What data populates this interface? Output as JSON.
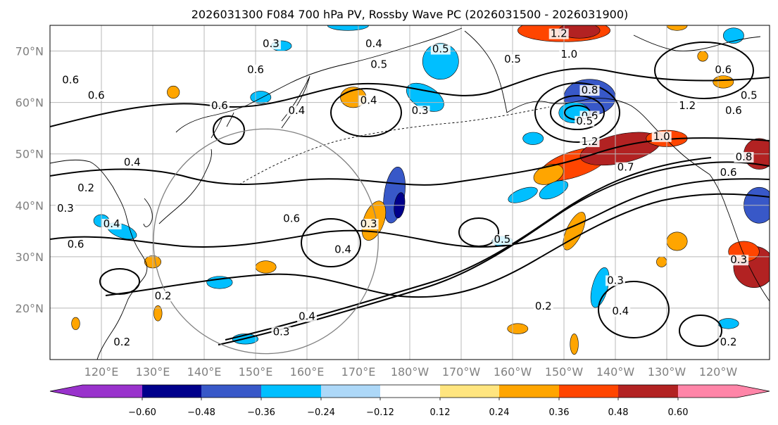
{
  "title": "2026031300 F084 700 hPa PV, Rossby Wave PC (2026031500 - 2026031900)",
  "map": {
    "lon_range": [
      110,
      250
    ],
    "lat_range": [
      10,
      75
    ],
    "lat_ticks": [
      {
        "lat": 20,
        "label": "20°N"
      },
      {
        "lat": 30,
        "label": "30°N"
      },
      {
        "lat": 40,
        "label": "40°N"
      },
      {
        "lat": 50,
        "label": "50°N"
      },
      {
        "lat": 60,
        "label": "60°N"
      },
      {
        "lat": 70,
        "label": "70°N"
      }
    ],
    "lon_ticks": [
      {
        "lon": 120,
        "label": "120°E"
      },
      {
        "lon": 130,
        "label": "130°E"
      },
      {
        "lon": 140,
        "label": "140°E"
      },
      {
        "lon": 150,
        "label": "150°E"
      },
      {
        "lon": 160,
        "label": "160°E"
      },
      {
        "lon": 170,
        "label": "170°E"
      },
      {
        "lon": 180,
        "label": "180°W"
      },
      {
        "lon": 190,
        "label": "170°W"
      },
      {
        "lon": 200,
        "label": "160°W"
      },
      {
        "lon": 210,
        "label": "150°W"
      },
      {
        "lon": 220,
        "label": "140°W"
      },
      {
        "lon": 230,
        "label": "130°W"
      },
      {
        "lon": 240,
        "label": "120°W"
      }
    ],
    "circle": {
      "lon": 152,
      "lat": 33,
      "radius_deg_lat": 23
    }
  },
  "pv_contour_labels": [
    {
      "text": "0.6",
      "lon": 114,
      "lat": 64
    },
    {
      "text": "0.6",
      "lon": 119,
      "lat": 61
    },
    {
      "text": "0.3",
      "lon": 153,
      "lat": 71
    },
    {
      "text": "0.6",
      "lon": 150,
      "lat": 66
    },
    {
      "text": "0.4",
      "lon": 173,
      "lat": 71
    },
    {
      "text": "0.5",
      "lon": 174,
      "lat": 67
    },
    {
      "text": "0.4",
      "lon": 172,
      "lat": 60
    },
    {
      "text": "0.4",
      "lon": 158,
      "lat": 58
    },
    {
      "text": "0.6",
      "lon": 143,
      "lat": 59
    },
    {
      "text": "0.5",
      "lon": 186,
      "lat": 70
    },
    {
      "text": "0.3",
      "lon": 182,
      "lat": 58
    },
    {
      "text": "0.4",
      "lon": 126,
      "lat": 48
    },
    {
      "text": "0.2",
      "lon": 117,
      "lat": 43
    },
    {
      "text": "0.3",
      "lon": 113,
      "lat": 39
    },
    {
      "text": "0.4",
      "lon": 122,
      "lat": 36
    },
    {
      "text": "0.6",
      "lon": 115,
      "lat": 32
    },
    {
      "text": "0.6",
      "lon": 157,
      "lat": 37
    },
    {
      "text": "0.3",
      "lon": 172,
      "lat": 36
    },
    {
      "text": "0.4",
      "lon": 167,
      "lat": 31
    },
    {
      "text": "0.5",
      "lon": 198,
      "lat": 33
    },
    {
      "text": "0.2",
      "lon": 132,
      "lat": 22
    },
    {
      "text": "0.3",
      "lon": 155,
      "lat": 15
    },
    {
      "text": "0.4",
      "lon": 160,
      "lat": 18
    },
    {
      "text": "0.2",
      "lon": 124,
      "lat": 13
    },
    {
      "text": "1.2",
      "lon": 209,
      "lat": 73
    },
    {
      "text": "1.0",
      "lon": 211,
      "lat": 69
    },
    {
      "text": "0.8",
      "lon": 215,
      "lat": 62
    },
    {
      "text": "0.6",
      "lon": 215,
      "lat": 57
    },
    {
      "text": "0.5",
      "lon": 214,
      "lat": 56
    },
    {
      "text": "1.2",
      "lon": 215,
      "lat": 52
    },
    {
      "text": "1.0",
      "lon": 229,
      "lat": 53
    },
    {
      "text": "1.2",
      "lon": 234,
      "lat": 59
    },
    {
      "text": "0.7",
      "lon": 222,
      "lat": 47
    },
    {
      "text": "0.5",
      "lon": 246,
      "lat": 61
    },
    {
      "text": "0.6",
      "lon": 243,
      "lat": 58
    },
    {
      "text": "0.8",
      "lon": 245,
      "lat": 49
    },
    {
      "text": "0.6",
      "lon": 242,
      "lat": 46
    },
    {
      "text": "0.6",
      "lon": 241,
      "lat": 66
    },
    {
      "text": "0.3",
      "lon": 220,
      "lat": 25
    },
    {
      "text": "0.2",
      "lon": 206,
      "lat": 20
    },
    {
      "text": "0.4",
      "lon": 221,
      "lat": 19
    },
    {
      "text": "0.2",
      "lon": 242,
      "lat": 13
    },
    {
      "text": "0.3",
      "lon": 244,
      "lat": 29
    },
    {
      "text": "0.5",
      "lon": 200,
      "lat": 68
    }
  ],
  "pc_anomalies": [
    {
      "lon": 212,
      "lat": 48,
      "rx": 7,
      "ry": 2.5,
      "rot": -18,
      "value": 0.45
    },
    {
      "lon": 221,
      "lat": 51,
      "rx": 8,
      "ry": 2.8,
      "rot": -12,
      "value": 0.52
    },
    {
      "lon": 230,
      "lat": 53,
      "rx": 4,
      "ry": 1.6,
      "rot": 0,
      "value": 0.4
    },
    {
      "lon": 207,
      "lat": 46,
      "rx": 3,
      "ry": 1.8,
      "rot": -20,
      "value": 0.28
    },
    {
      "lon": 215,
      "lat": 61,
      "rx": 5,
      "ry": 3.5,
      "rot": 0,
      "value": -0.45
    },
    {
      "lon": 212,
      "lat": 58,
      "rx": 3,
      "ry": 2.0,
      "rot": 0,
      "value": -0.3
    },
    {
      "lon": 210,
      "lat": 74,
      "rx": 9,
      "ry": 2.2,
      "rot": 0,
      "value": 0.4
    },
    {
      "lon": 213,
      "lat": 74,
      "rx": 4,
      "ry": 1.5,
      "rot": 0,
      "value": 0.55
    },
    {
      "lon": 248,
      "lat": 50,
      "rx": 3,
      "ry": 3.0,
      "rot": 0,
      "value": 0.5
    },
    {
      "lon": 248,
      "lat": 40,
      "rx": 3,
      "ry": 3.5,
      "rot": 0,
      "value": -0.4
    },
    {
      "lon": 247,
      "lat": 28,
      "rx": 4,
      "ry": 4.0,
      "rot": 0,
      "value": 0.5
    },
    {
      "lon": 245,
      "lat": 31,
      "rx": 3,
      "ry": 2.0,
      "rot": 0,
      "value": 0.38
    },
    {
      "lon": 243,
      "lat": 73,
      "rx": 2,
      "ry": 1.5,
      "rot": 0,
      "value": -0.3
    },
    {
      "lon": 241,
      "lat": 64,
      "rx": 2,
      "ry": 1.2,
      "rot": 0,
      "value": 0.28
    },
    {
      "lon": 212,
      "lat": 35,
      "rx": 1.5,
      "ry": 4.0,
      "rot": 25,
      "value": 0.35
    },
    {
      "lon": 217,
      "lat": 24,
      "rx": 1.5,
      "ry": 4.0,
      "rot": 15,
      "value": -0.3
    },
    {
      "lon": 232,
      "lat": 33,
      "rx": 2,
      "ry": 1.8,
      "rot": 0,
      "value": 0.35
    },
    {
      "lon": 202,
      "lat": 42,
      "rx": 3,
      "ry": 1.2,
      "rot": -20,
      "value": -0.28
    },
    {
      "lon": 208,
      "lat": 43,
      "rx": 3,
      "ry": 1.4,
      "rot": -25,
      "value": -0.26
    },
    {
      "lon": 198,
      "lat": 33,
      "rx": 2,
      "ry": 1.0,
      "rot": 0,
      "value": -0.25
    },
    {
      "lon": 201,
      "lat": 16,
      "rx": 2,
      "ry": 1.0,
      "rot": 0,
      "value": 0.26
    },
    {
      "lon": 212,
      "lat": 13,
      "rx": 0.8,
      "ry": 2.0,
      "rot": 0,
      "value": 0.26
    },
    {
      "lon": 242,
      "lat": 17,
      "rx": 2,
      "ry": 1.0,
      "rot": 0,
      "value": -0.3
    },
    {
      "lon": 177,
      "lat": 42,
      "rx": 2,
      "ry": 5.5,
      "rot": 8,
      "value": -0.38
    },
    {
      "lon": 178,
      "lat": 40,
      "rx": 1,
      "ry": 2.5,
      "rot": 8,
      "value": -0.5
    },
    {
      "lon": 173,
      "lat": 37,
      "rx": 2,
      "ry": 4.0,
      "rot": 20,
      "value": 0.3
    },
    {
      "lon": 183,
      "lat": 61,
      "rx": 4,
      "ry": 2.2,
      "rot": 30,
      "value": -0.35
    },
    {
      "lon": 186,
      "lat": 68,
      "rx": 3.5,
      "ry": 3.5,
      "rot": 0,
      "value": -0.33
    },
    {
      "lon": 169,
      "lat": 61,
      "rx": 2.5,
      "ry": 2.0,
      "rot": 0,
      "value": 0.3
    },
    {
      "lon": 168,
      "lat": 75,
      "rx": 4,
      "ry": 1.0,
      "rot": 0,
      "value": -0.28
    },
    {
      "lon": 124,
      "lat": 35,
      "rx": 3,
      "ry": 1.3,
      "rot": 20,
      "value": -0.3
    },
    {
      "lon": 120,
      "lat": 37,
      "rx": 1.5,
      "ry": 1.2,
      "rot": 0,
      "value": -0.28
    },
    {
      "lon": 151,
      "lat": 61,
      "rx": 2,
      "ry": 1.2,
      "rot": 0,
      "value": -0.3
    },
    {
      "lon": 134,
      "lat": 62,
      "rx": 1.2,
      "ry": 1.2,
      "rot": 0,
      "value": 0.3
    },
    {
      "lon": 130,
      "lat": 29,
      "rx": 1.6,
      "ry": 1.2,
      "rot": 0,
      "value": 0.3
    },
    {
      "lon": 152,
      "lat": 28,
      "rx": 2,
      "ry": 1.2,
      "rot": 0,
      "value": 0.3
    },
    {
      "lon": 143,
      "lat": 25,
      "rx": 2.5,
      "ry": 1.2,
      "rot": 0,
      "value": -0.3
    },
    {
      "lon": 131,
      "lat": 19,
      "rx": 0.8,
      "ry": 1.5,
      "rot": 0,
      "value": 0.28
    },
    {
      "lon": 115,
      "lat": 17,
      "rx": 0.8,
      "ry": 1.2,
      "rot": 0,
      "value": 0.28
    },
    {
      "lon": 148,
      "lat": 14,
      "rx": 2.5,
      "ry": 1.0,
      "rot": 0,
      "value": -0.28
    },
    {
      "lon": 204,
      "lat": 53,
      "rx": 2,
      "ry": 1.2,
      "rot": 0,
      "value": -0.28
    },
    {
      "lon": 237,
      "lat": 69,
      "rx": 1,
      "ry": 1.0,
      "rot": 0,
      "value": 0.28
    },
    {
      "lon": 229,
      "lat": 29,
      "rx": 1,
      "ry": 1.0,
      "rot": 0,
      "value": 0.28
    },
    {
      "lon": 155,
      "lat": 71,
      "rx": 2,
      "ry": 1.0,
      "rot": 0,
      "value": -0.28
    },
    {
      "lon": 232,
      "lat": 75,
      "rx": 2,
      "ry": 1.0,
      "rot": 0,
      "value": 0.28
    }
  ],
  "colorbar": {
    "colors": [
      "#9932cc",
      "#00008b",
      "#3858c8",
      "#00bfff",
      "#add8f8",
      "#ffffff",
      "#ffe57f",
      "#ffa500",
      "#ff4500",
      "#b22222",
      "#ff85a8"
    ],
    "ticks": [
      "−0.60",
      "−0.48",
      "−0.36",
      "−0.24",
      "−0.12",
      "0.12",
      "0.24",
      "0.36",
      "0.48",
      "0.60"
    ],
    "levels": [
      -0.6,
      -0.48,
      -0.36,
      -0.24,
      -0.12,
      0.12,
      0.24,
      0.36,
      0.48,
      0.6
    ]
  }
}
